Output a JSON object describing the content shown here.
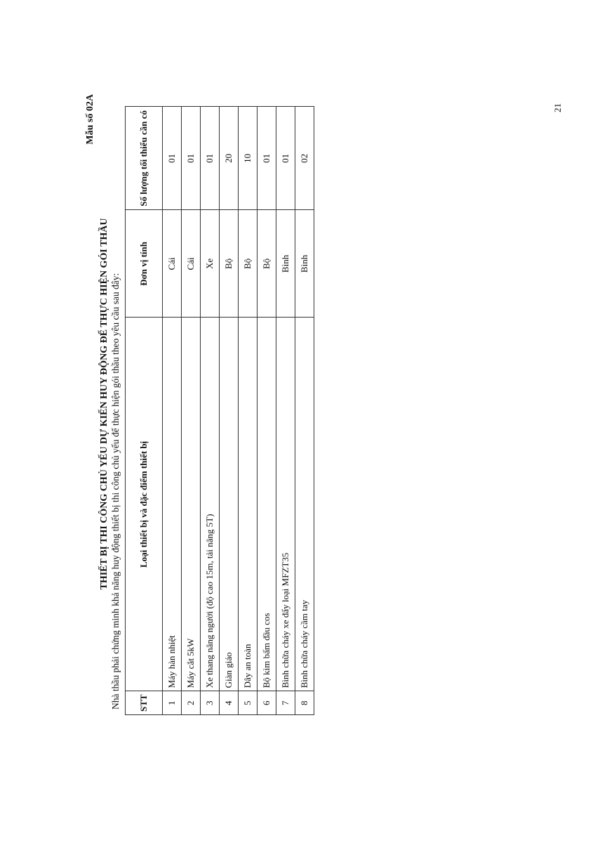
{
  "form_number": "Mẫu số 02A",
  "title": "THIẾT BỊ THI CÔNG CHỦ YẾU DỰ KIẾN HUY ĐỘNG ĐỂ THỰC HIỆN GÓI THẦU",
  "subtitle": "Nhà thầu phải chứng minh khả năng huy động thiết bị thi công chủ yếu để thực hiện gói thầu theo yêu cầu sau đây:",
  "table": {
    "headers": [
      "STT",
      "Loại thiết bị và đặc điểm thiết bị",
      "Đơn vị tính",
      "Số lượng tối thiểu cần có"
    ],
    "rows": [
      [
        "1",
        "Máy hàn nhiệt",
        "Cái",
        "01"
      ],
      [
        "2",
        "Máy cắt 5kW",
        "Cái",
        "01"
      ],
      [
        "3",
        "Xe thang nâng người (độ cao 15m, tải nâng 5T)",
        "Xe",
        "01"
      ],
      [
        "4",
        "Giàn giáo",
        "Bộ",
        "20"
      ],
      [
        "5",
        "Dây an toàn",
        "Bộ",
        "10"
      ],
      [
        "6",
        "Bộ kìm bấm đầu cos",
        "Bộ",
        "01"
      ],
      [
        "7",
        "Bình chữa cháy xe đẩy loại MFZT35",
        "Bình",
        "01"
      ],
      [
        "8",
        "Bình chữa cháy cầm tay",
        "Bình",
        "02"
      ]
    ]
  },
  "page_number": "21"
}
